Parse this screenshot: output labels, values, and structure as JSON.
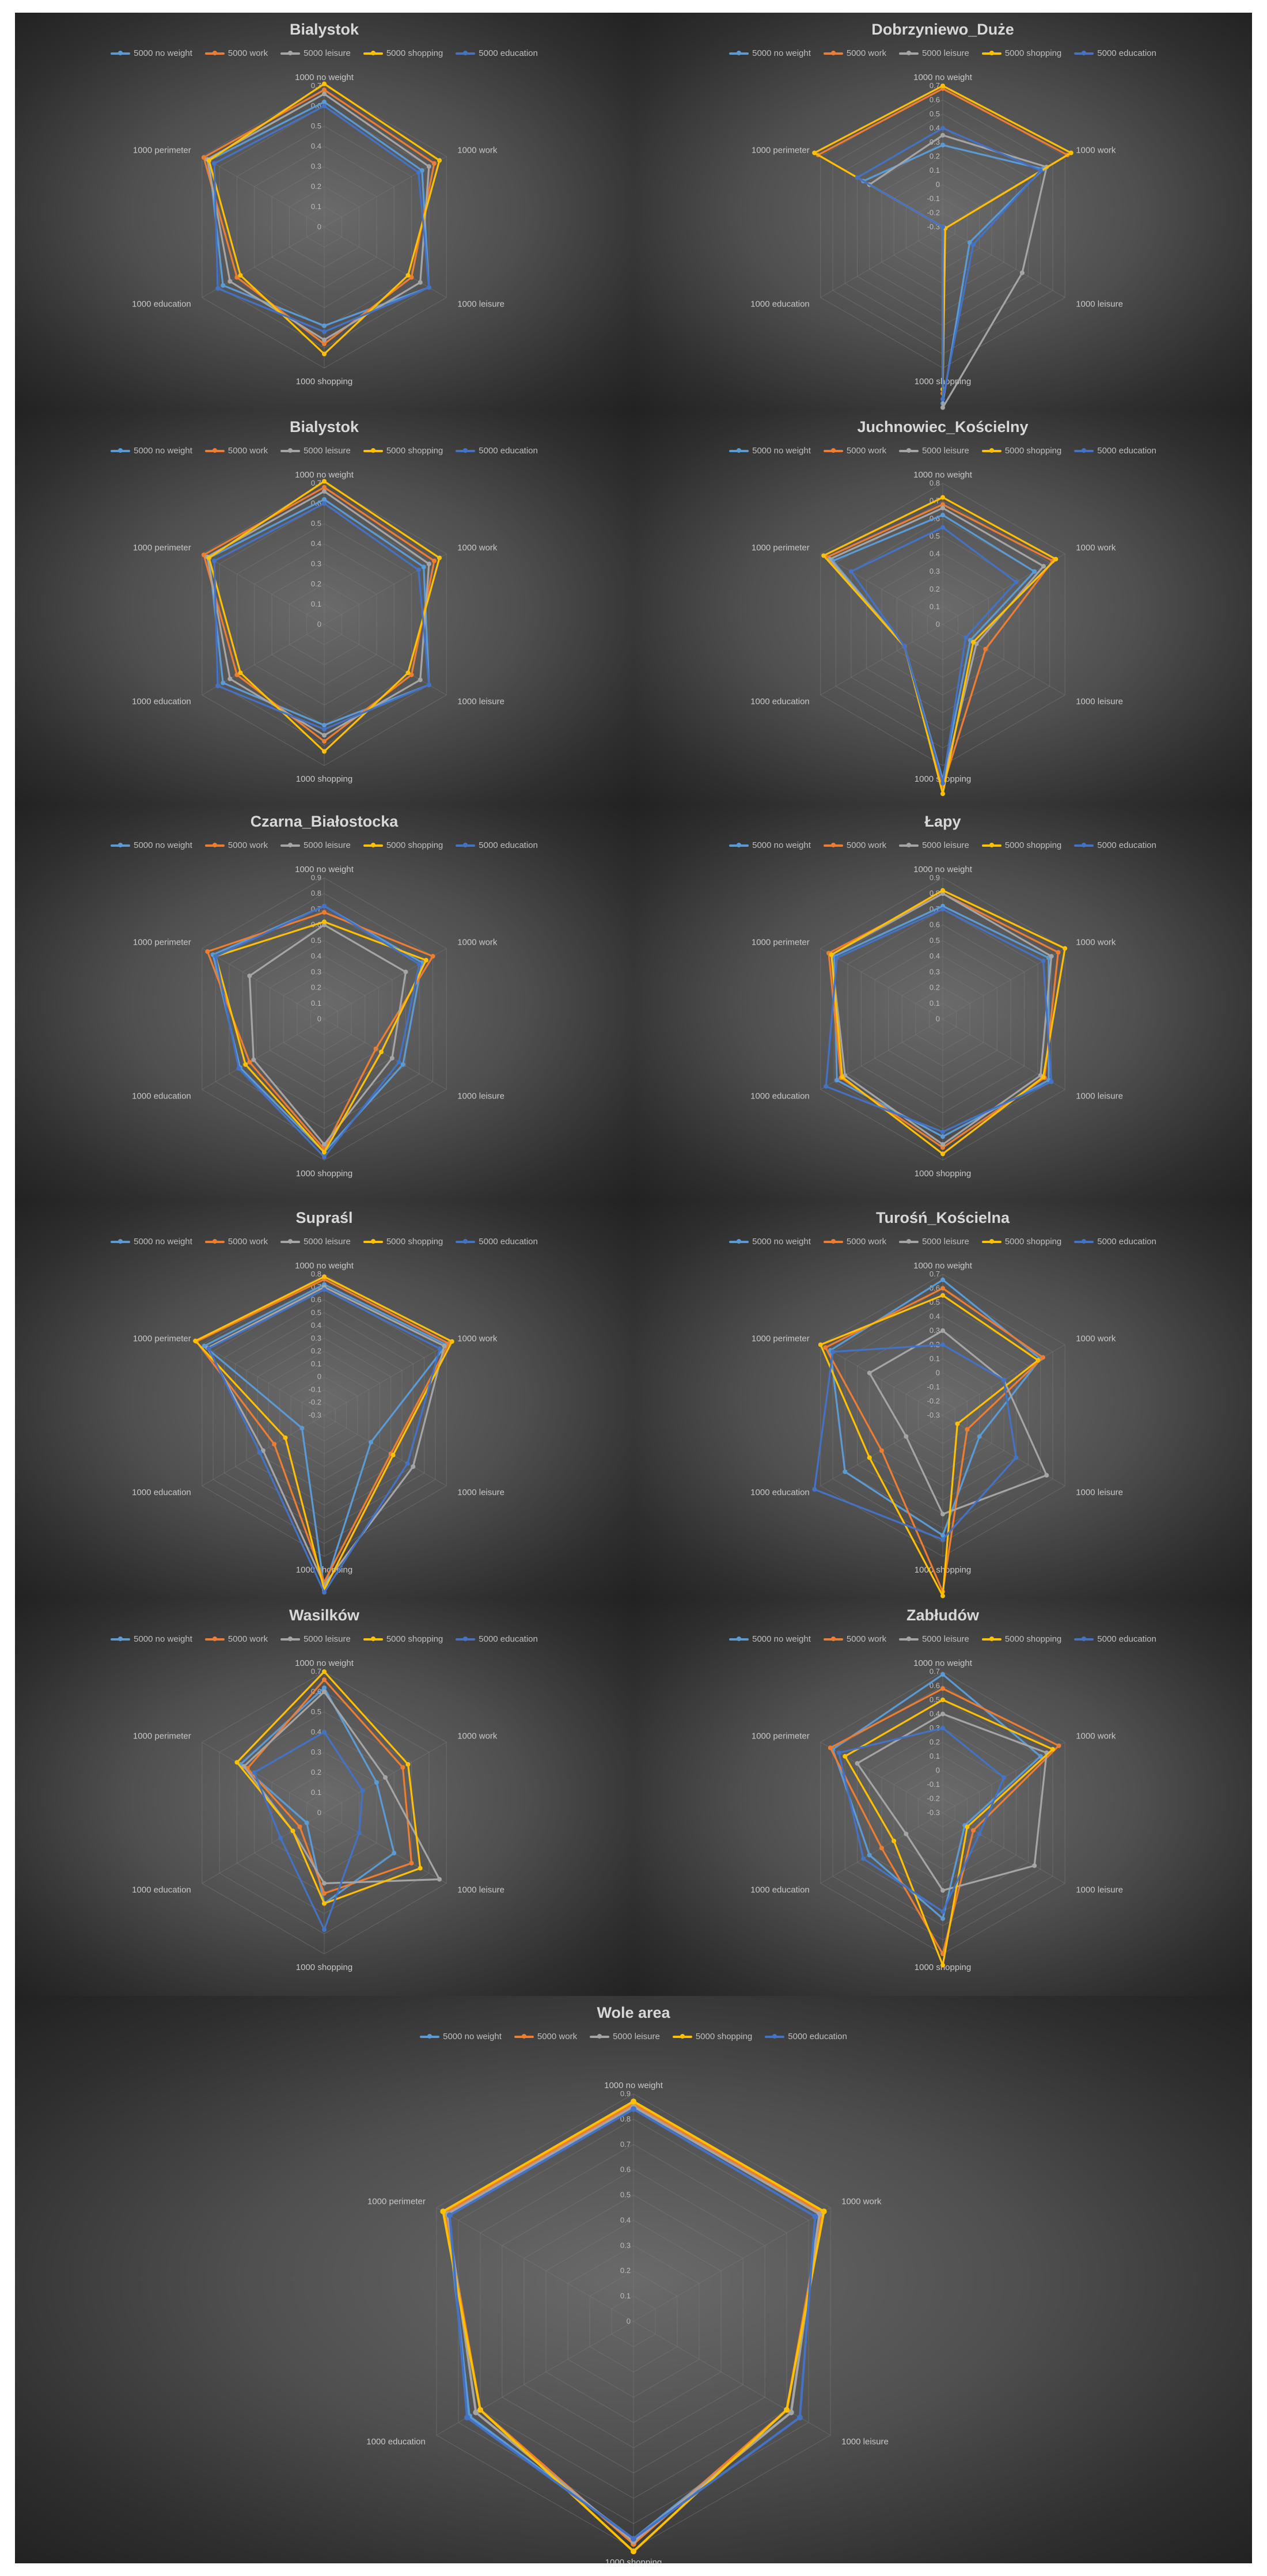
{
  "colors": {
    "5000 no weight": "#5b9bd5",
    "5000 work": "#ed7d31",
    "5000 leisure": "#a5a5a5",
    "5000 shopping": "#ffc000",
    "5000 education": "#4472c4"
  },
  "chart_data": [
    {
      "type": "radar",
      "title": "Bialystok",
      "axes": [
        "1000 no weight",
        "1000 work",
        "1000 leisure",
        "1000 shopping",
        "1000 education",
        "1000 perimeter"
      ],
      "ticks": [
        "0.7",
        "0.6",
        "0.5",
        "0.4",
        "0.3",
        "0.2",
        "0.1",
        "0"
      ],
      "range": [
        0,
        0.7
      ],
      "legend_position": "top",
      "series": [
        {
          "name": "5000 no weight",
          "values": [
            0.62,
            0.56,
            0.6,
            0.49,
            0.58,
            0.66
          ]
        },
        {
          "name": "5000 work",
          "values": [
            0.68,
            0.63,
            0.5,
            0.58,
            0.5,
            0.69
          ]
        },
        {
          "name": "5000 leisure",
          "values": [
            0.66,
            0.6,
            0.55,
            0.56,
            0.54,
            0.67
          ]
        },
        {
          "name": "5000 shopping",
          "values": [
            0.71,
            0.66,
            0.48,
            0.63,
            0.48,
            0.66
          ]
        },
        {
          "name": "5000 education",
          "values": [
            0.6,
            0.54,
            0.6,
            0.52,
            0.61,
            0.63
          ]
        }
      ]
    },
    {
      "type": "radar",
      "title": "Dobrzyniewo_Duże",
      "axes": [
        "1000 no weight",
        "1000 work",
        "1000 leisure",
        "1000 shopping",
        "1000 education",
        "1000 perimeter"
      ],
      "ticks": [
        "0.7",
        "0.6",
        "0.5",
        "0.4",
        "0.3",
        "0.2",
        "0.1",
        "0",
        "-0.1",
        "-0.2",
        "-0.3"
      ],
      "range": [
        -0.3,
        0.7
      ],
      "legend_position": "top",
      "series": [
        {
          "name": "5000 no weight",
          "values": [
            0.28,
            0.52,
            -0.08,
            0.95,
            -0.3,
            0.35
          ]
        },
        {
          "name": "5000 work",
          "values": [
            0.68,
            0.72,
            -0.28,
            0.88,
            -0.3,
            0.72
          ]
        },
        {
          "name": "5000 leisure",
          "values": [
            0.35,
            0.55,
            0.35,
            0.98,
            -0.3,
            0.3
          ]
        },
        {
          "name": "5000 shopping",
          "values": [
            0.7,
            0.75,
            -0.28,
            0.85,
            -0.3,
            0.75
          ]
        },
        {
          "name": "5000 education",
          "values": [
            0.4,
            0.5,
            -0.05,
            0.92,
            -0.3,
            0.4
          ]
        }
      ]
    },
    {
      "type": "radar",
      "title": "Bialystok",
      "axes": [
        "1000 no weight",
        "1000 work",
        "1000 leisure",
        "1000 shopping",
        "1000 education",
        "1000 perimeter"
      ],
      "ticks": [
        "0.7",
        "0.6",
        "0.5",
        "0.4",
        "0.3",
        "0.2",
        "0.1",
        "0"
      ],
      "range": [
        0,
        0.7
      ],
      "legend_position": "top",
      "series": [
        {
          "name": "5000 no weight",
          "values": [
            0.62,
            0.57,
            0.6,
            0.5,
            0.58,
            0.66
          ]
        },
        {
          "name": "5000 work",
          "values": [
            0.68,
            0.63,
            0.5,
            0.58,
            0.5,
            0.69
          ]
        },
        {
          "name": "5000 leisure",
          "values": [
            0.66,
            0.6,
            0.55,
            0.55,
            0.54,
            0.67
          ]
        },
        {
          "name": "5000 shopping",
          "values": [
            0.71,
            0.66,
            0.48,
            0.63,
            0.48,
            0.66
          ]
        },
        {
          "name": "5000 education",
          "values": [
            0.6,
            0.54,
            0.6,
            0.52,
            0.61,
            0.63
          ]
        }
      ]
    },
    {
      "type": "radar",
      "title": "Juchnowiec_Kościelny",
      "axes": [
        "1000 no weight",
        "1000 work",
        "1000 leisure",
        "1000 shopping",
        "1000 education",
        "1000 perimeter"
      ],
      "ticks": [
        "0.8",
        "0.7",
        "0.6",
        "0.5",
        "0.4",
        "0.3",
        "0.2",
        "0.1",
        "0"
      ],
      "range": [
        0,
        0.8
      ],
      "legend_position": "top",
      "series": [
        {
          "name": "5000 no weight",
          "values": [
            0.62,
            0.6,
            0.18,
            0.88,
            0.25,
            0.72
          ]
        },
        {
          "name": "5000 work",
          "values": [
            0.68,
            0.72,
            0.28,
            0.92,
            0.25,
            0.76
          ]
        },
        {
          "name": "5000 leisure",
          "values": [
            0.66,
            0.66,
            0.22,
            0.9,
            0.25,
            0.74
          ]
        },
        {
          "name": "5000 shopping",
          "values": [
            0.72,
            0.74,
            0.2,
            0.96,
            0.25,
            0.78
          ]
        },
        {
          "name": "5000 education",
          "values": [
            0.55,
            0.48,
            0.15,
            0.9,
            0.25,
            0.6
          ]
        }
      ]
    },
    {
      "type": "radar",
      "title": "Czarna_Białostocka",
      "axes": [
        "1000 no weight",
        "1000 work",
        "1000 leisure",
        "1000 shopping",
        "1000 education",
        "1000 perimeter"
      ],
      "ticks": [
        "0.9",
        "0.8",
        "0.7",
        "0.6",
        "0.5",
        "0.4",
        "0.3",
        "0.2",
        "0.1",
        "0"
      ],
      "range": [
        0,
        0.9
      ],
      "legend_position": "top",
      "series": [
        {
          "name": "5000 no weight",
          "values": [
            0.72,
            0.72,
            0.58,
            0.85,
            0.62,
            0.82
          ]
        },
        {
          "name": "5000 work",
          "values": [
            0.68,
            0.8,
            0.38,
            0.83,
            0.55,
            0.86
          ]
        },
        {
          "name": "5000 leisure",
          "values": [
            0.6,
            0.6,
            0.5,
            0.8,
            0.52,
            0.55
          ]
        },
        {
          "name": "5000 shopping",
          "values": [
            0.62,
            0.75,
            0.42,
            0.85,
            0.58,
            0.8
          ]
        },
        {
          "name": "5000 education",
          "values": [
            0.72,
            0.7,
            0.55,
            0.88,
            0.63,
            0.8
          ]
        }
      ]
    },
    {
      "type": "radar",
      "title": "Łapy",
      "axes": [
        "1000 no weight",
        "1000 work",
        "1000 leisure",
        "1000 shopping",
        "1000 education",
        "1000 perimeter"
      ],
      "ticks": [
        "0.9",
        "0.8",
        "0.7",
        "0.6",
        "0.5",
        "0.4",
        "0.3",
        "0.2",
        "0.1",
        "0"
      ],
      "range": [
        0,
        0.9
      ],
      "legend_position": "top",
      "series": [
        {
          "name": "5000 no weight",
          "values": [
            0.72,
            0.78,
            0.78,
            0.75,
            0.78,
            0.8
          ]
        },
        {
          "name": "5000 work",
          "values": [
            0.8,
            0.85,
            0.75,
            0.82,
            0.75,
            0.84
          ]
        },
        {
          "name": "5000 leisure",
          "values": [
            0.8,
            0.8,
            0.72,
            0.8,
            0.72,
            0.82
          ]
        },
        {
          "name": "5000 shopping",
          "values": [
            0.82,
            0.9,
            0.74,
            0.86,
            0.74,
            0.82
          ]
        },
        {
          "name": "5000 education",
          "values": [
            0.7,
            0.74,
            0.8,
            0.72,
            0.86,
            0.78
          ]
        }
      ]
    },
    {
      "type": "radar",
      "title": "Supraśl",
      "axes": [
        "1000 no weight",
        "1000 work",
        "1000 leisure",
        "1000 shopping",
        "1000 education",
        "1000 perimeter"
      ],
      "ticks": [
        "0.8",
        "0.7",
        "0.6",
        "0.5",
        "0.4",
        "0.3",
        "0.2",
        "0.1",
        "0",
        "-0.1",
        "-0.2",
        "-0.3"
      ],
      "range": [
        -0.3,
        0.8
      ],
      "legend_position": "top",
      "series": [
        {
          "name": "5000 no weight",
          "values": [
            0.72,
            0.8,
            0.12,
            1.05,
            -0.1,
            0.78
          ]
        },
        {
          "name": "5000 work",
          "values": [
            0.76,
            0.82,
            0.3,
            1.0,
            0.15,
            0.85
          ]
        },
        {
          "name": "5000 leisure",
          "values": [
            0.7,
            0.78,
            0.5,
            1.02,
            0.25,
            0.75
          ]
        },
        {
          "name": "5000 shopping",
          "values": [
            0.78,
            0.85,
            0.32,
            1.06,
            0.05,
            0.86
          ]
        },
        {
          "name": "5000 education",
          "values": [
            0.68,
            0.74,
            0.45,
            1.08,
            0.28,
            0.74
          ]
        }
      ]
    },
    {
      "type": "radar",
      "title": "Turośń_Kościelna",
      "axes": [
        "1000 no weight",
        "1000 work",
        "1000 leisure",
        "1000 shopping",
        "1000 education",
        "1000 perimeter"
      ],
      "ticks": [
        "0.7",
        "0.6",
        "0.5",
        "0.4",
        "0.3",
        "0.2",
        "0.1",
        "0",
        "-0.1",
        "-0.2",
        "-0.3"
      ],
      "range": [
        -0.3,
        0.7
      ],
      "legend_position": "top",
      "series": [
        {
          "name": "5000 no weight",
          "values": [
            0.66,
            0.5,
            0.0,
            0.55,
            0.5,
            0.62
          ]
        },
        {
          "name": "5000 work",
          "values": [
            0.6,
            0.52,
            -0.1,
            0.95,
            0.2,
            0.66
          ]
        },
        {
          "name": "5000 leisure",
          "values": [
            0.3,
            0.2,
            0.55,
            0.4,
            0.0,
            0.3
          ]
        },
        {
          "name": "5000 shopping",
          "values": [
            0.55,
            0.48,
            -0.18,
            0.98,
            0.3,
            0.7
          ]
        },
        {
          "name": "5000 education",
          "values": [
            0.2,
            0.2,
            0.3,
            0.58,
            0.75,
            0.6
          ]
        }
      ]
    },
    {
      "type": "radar",
      "title": "Wasilków",
      "axes": [
        "1000 no weight",
        "1000 work",
        "1000 leisure",
        "1000 shopping",
        "1000 education",
        "1000 perimeter"
      ],
      "ticks": [
        "0.7",
        "0.6",
        "0.5",
        "0.4",
        "0.3",
        "0.2",
        "0.1",
        "0"
      ],
      "range": [
        0,
        0.7
      ],
      "legend_position": "top",
      "series": [
        {
          "name": "5000 no weight",
          "values": [
            0.62,
            0.3,
            0.4,
            0.45,
            0.1,
            0.48
          ]
        },
        {
          "name": "5000 work",
          "values": [
            0.66,
            0.45,
            0.5,
            0.4,
            0.14,
            0.44
          ]
        },
        {
          "name": "5000 leisure",
          "values": [
            0.6,
            0.35,
            0.66,
            0.35,
            0.18,
            0.46
          ]
        },
        {
          "name": "5000 shopping",
          "values": [
            0.7,
            0.48,
            0.55,
            0.45,
            0.18,
            0.5
          ]
        },
        {
          "name": "5000 education",
          "values": [
            0.4,
            0.22,
            0.2,
            0.58,
            0.25,
            0.4
          ]
        }
      ]
    },
    {
      "type": "radar",
      "title": "Zabłudów",
      "axes": [
        "1000 no weight",
        "1000 work",
        "1000 leisure",
        "1000 shopping",
        "1000 education",
        "1000 perimeter"
      ],
      "ticks": [
        "0.7",
        "0.6",
        "0.5",
        "0.4",
        "0.3",
        "0.2",
        "0.1",
        "0",
        "-0.1",
        "-0.2",
        "-0.3"
      ],
      "range": [
        -0.3,
        0.7
      ],
      "legend_position": "top",
      "series": [
        {
          "name": "5000 no weight",
          "values": [
            0.68,
            0.5,
            -0.12,
            0.45,
            0.3,
            0.6
          ]
        },
        {
          "name": "5000 work",
          "values": [
            0.58,
            0.65,
            -0.05,
            0.7,
            0.2,
            0.62
          ]
        },
        {
          "name": "5000 leisure",
          "values": [
            0.4,
            0.55,
            0.45,
            0.25,
            0.0,
            0.4
          ]
        },
        {
          "name": "5000 shopping",
          "values": [
            0.5,
            0.6,
            -0.1,
            0.78,
            0.1,
            0.5
          ]
        },
        {
          "name": "5000 education",
          "values": [
            0.3,
            0.2,
            0.0,
            0.4,
            0.35,
            0.55
          ]
        }
      ]
    },
    {
      "type": "radar",
      "title": "Wole area",
      "axes": [
        "1000 no weight",
        "1000 work",
        "1000 leisure",
        "1000 shopping",
        "1000 education",
        "1000 perimeter"
      ],
      "ticks": [
        "0.9",
        "0.8",
        "0.7",
        "0.6",
        "0.5",
        "0.4",
        "0.3",
        "0.2",
        "0.1",
        "0"
      ],
      "range": [
        0,
        0.9
      ],
      "legend_position": "top",
      "series": [
        {
          "name": "5000 no weight",
          "values": [
            0.85,
            0.85,
            0.72,
            0.86,
            0.75,
            0.85
          ]
        },
        {
          "name": "5000 work",
          "values": [
            0.86,
            0.86,
            0.7,
            0.88,
            0.7,
            0.86
          ]
        },
        {
          "name": "5000 leisure",
          "values": [
            0.85,
            0.85,
            0.72,
            0.87,
            0.72,
            0.85
          ]
        },
        {
          "name": "5000 shopping",
          "values": [
            0.87,
            0.87,
            0.7,
            0.91,
            0.7,
            0.87
          ]
        },
        {
          "name": "5000 education",
          "values": [
            0.84,
            0.83,
            0.76,
            0.86,
            0.76,
            0.84
          ]
        }
      ]
    }
  ]
}
